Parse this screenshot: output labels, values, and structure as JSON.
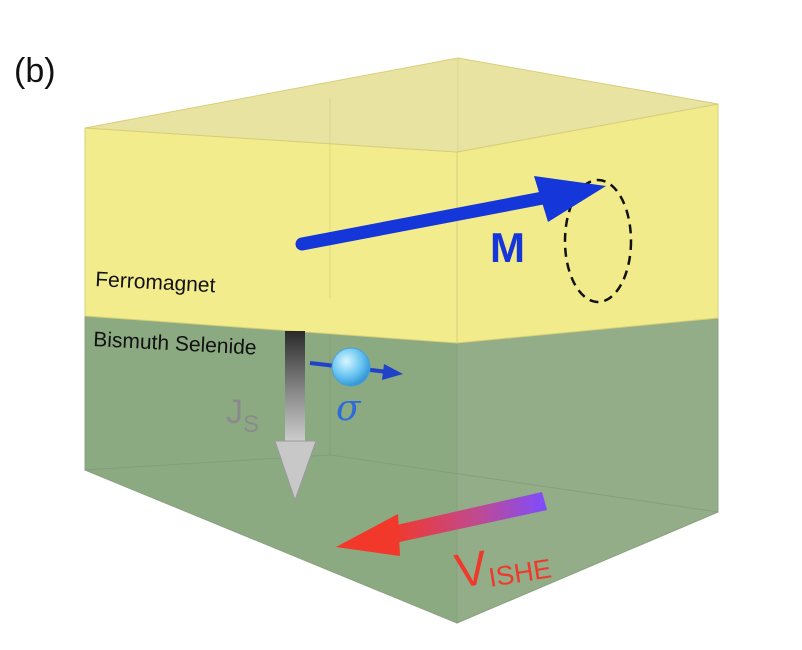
{
  "panel": {
    "label": "(b)"
  },
  "layers": {
    "top": {
      "label": "Ferromagnet",
      "color": "#f3ee8f"
    },
    "bottom": {
      "label": "Bismuth Selenide",
      "color": "#8fad84"
    }
  },
  "arrows": {
    "magnetization": {
      "label": "M",
      "color": "#1536d9"
    },
    "spin_current": {
      "label_main": "J",
      "label_sub": "S",
      "color": "#7d7d7d"
    },
    "spin": {
      "label": "σ",
      "color": "#2f6bd8"
    },
    "voltage": {
      "label_main": "V",
      "label_sub": "ISHE",
      "color_start": "#7a4dff",
      "color_end": "#f03a2e"
    }
  }
}
